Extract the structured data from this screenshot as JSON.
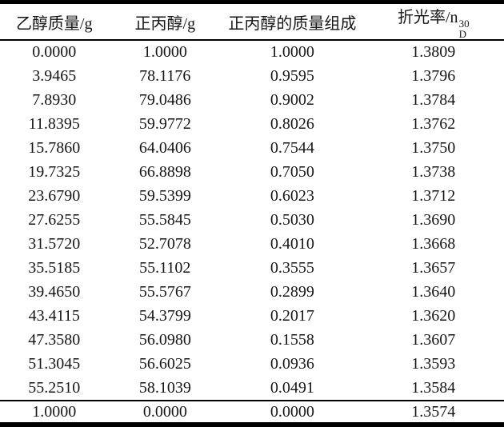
{
  "table": {
    "columns": [
      "乙醇质量/g",
      "正丙醇/g",
      "正丙醇的质量组成",
      "折光率/n"
    ],
    "refractive_notation": {
      "sub": "D",
      "sup": "30"
    },
    "rows": [
      [
        "0.0000",
        "1.0000",
        "1.0000",
        "1.3809"
      ],
      [
        "3.9465",
        "78.1176",
        "0.9595",
        "1.3796"
      ],
      [
        "7.8930",
        "79.0486",
        "0.9002",
        "1.3784"
      ],
      [
        "11.8395",
        "59.9772",
        "0.8026",
        "1.3762"
      ],
      [
        "15.7860",
        "64.0406",
        "0.7544",
        "1.3750"
      ],
      [
        "19.7325",
        "66.8898",
        "0.7050",
        "1.3738"
      ],
      [
        "23.6790",
        "59.5399",
        "0.6023",
        "1.3712"
      ],
      [
        "27.6255",
        "55.5845",
        "0.5030",
        "1.3690"
      ],
      [
        "31.5720",
        "52.7078",
        "0.4010",
        "1.3668"
      ],
      [
        "35.5185",
        "55.1102",
        "0.3555",
        "1.3657"
      ],
      [
        "39.4650",
        "55.5767",
        "0.2899",
        "1.3640"
      ],
      [
        "43.4115",
        "54.3799",
        "0.2017",
        "1.3620"
      ],
      [
        "47.3580",
        "56.0980",
        "0.1558",
        "1.3607"
      ],
      [
        "51.3045",
        "56.6025",
        "0.0936",
        "1.3593"
      ],
      [
        "55.2510",
        "58.1039",
        "0.0491",
        "1.3584"
      ]
    ],
    "footer": [
      "1.0000",
      "0.0000",
      "0.0000",
      "1.3574"
    ]
  },
  "colors": {
    "rule": "#000000",
    "text": "#161616",
    "background": "#ffffff"
  }
}
